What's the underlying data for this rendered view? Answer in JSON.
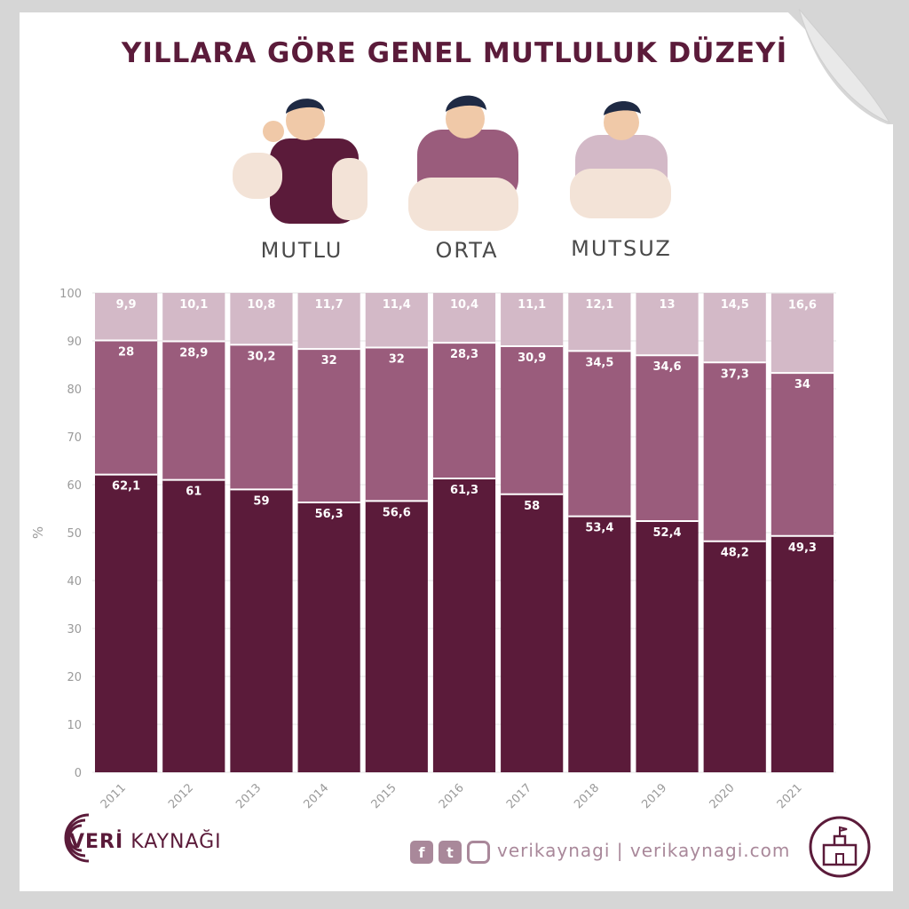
{
  "title": "YILLARA GÖRE GENEL MUTLULUK DÜZEYİ",
  "categories_labels": {
    "happy": "MUTLU",
    "neutral": "ORTA",
    "unhappy": "MUTSUZ"
  },
  "brand": {
    "name_bold": "VERİ",
    "name_rest": "KAYNAĞI",
    "site": "verikaynagi | verikaynagi.com",
    "social": [
      "facebook-icon",
      "twitter-icon",
      "instagram-icon"
    ]
  },
  "colors": {
    "happy": "#5b1b3a",
    "neutral": "#9a5c7c",
    "unhappy": "#d3b9c7",
    "title": "#5b1b3a"
  },
  "chart_data": {
    "type": "bar",
    "stacked": true,
    "categories": [
      "2011",
      "2012",
      "2013",
      "2014",
      "2015",
      "2016",
      "2017",
      "2018",
      "2019",
      "2020",
      "2021"
    ],
    "series": [
      {
        "name": "MUTLU",
        "values": [
          62.1,
          61,
          59,
          56.3,
          56.6,
          61.3,
          58,
          53.4,
          52.4,
          48.2,
          49.3
        ],
        "labels": [
          "62,1",
          "61",
          "59",
          "56,3",
          "56,6",
          "61,3",
          "58",
          "53,4",
          "52,4",
          "48,2",
          "49,3"
        ]
      },
      {
        "name": "ORTA",
        "values": [
          28,
          28.9,
          30.2,
          32,
          32,
          28.3,
          30.9,
          34.5,
          34.6,
          37.3,
          34
        ],
        "labels": [
          "28",
          "28,9",
          "30,2",
          "32",
          "32",
          "28,3",
          "30,9",
          "34,5",
          "34,6",
          "37,3",
          "34"
        ]
      },
      {
        "name": "MUTSUZ",
        "values": [
          9.9,
          10.1,
          10.8,
          11.7,
          11.4,
          10.4,
          11.1,
          12.1,
          13,
          14.5,
          16.6
        ],
        "labels": [
          "9,9",
          "10,1",
          "10,8",
          "11,7",
          "11,4",
          "10,4",
          "11,1",
          "12,1",
          "13",
          "14,5",
          "16,6"
        ]
      }
    ],
    "ylabel": "%",
    "ylim": [
      0,
      100
    ],
    "yticks": [
      0,
      10,
      20,
      30,
      40,
      50,
      60,
      70,
      80,
      90,
      100
    ]
  }
}
